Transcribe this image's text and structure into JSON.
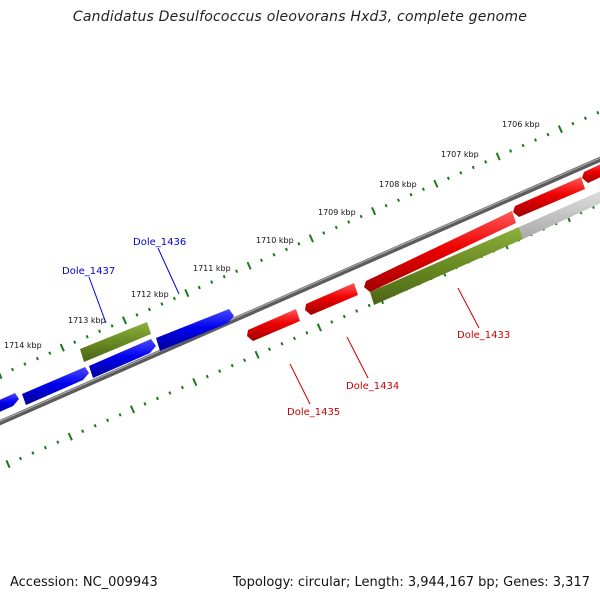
{
  "title": "Candidatus Desulfococcus oleovorans Hxd3, complete genome",
  "footer": {
    "accession": "Accession: NC_009943",
    "summary": "Topology: circular; Length: 3,944,167 bp; Genes: 3,317"
  },
  "colors": {
    "plus_strand": "#0000ee",
    "minus_strand": "#ee0000",
    "rna": "#6b8e23",
    "pseudo": "#c0c0c0",
    "ticks": "#1a7a1a",
    "backbone": "#777777"
  },
  "scale_ticks": [
    "1706 kbp",
    "1707 kbp",
    "1708 kbp",
    "1709 kbp",
    "1710 kbp",
    "1711 kbp",
    "1712 kbp",
    "1713 kbp",
    "1714 kbp"
  ],
  "gene_labels": [
    {
      "text": "Dole_1436",
      "color": "#0000cc"
    },
    {
      "text": "Dole_1437",
      "color": "#0000cc"
    },
    {
      "text": "Dole_1433",
      "color": "#cc0000"
    },
    {
      "text": "Dole_1434",
      "color": "#cc0000"
    },
    {
      "text": "Dole_1435",
      "color": "#cc0000"
    }
  ]
}
